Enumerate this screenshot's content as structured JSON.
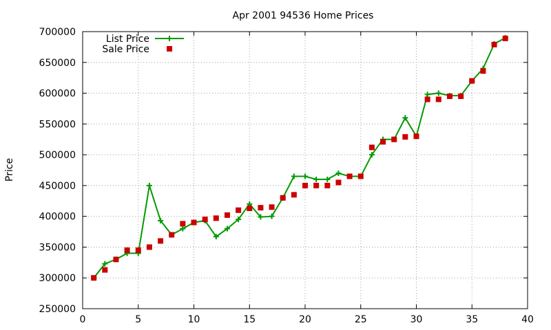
{
  "chart_data": {
    "type": "line",
    "title": "Apr 2001 94536 Home Prices",
    "xlabel": "",
    "ylabel": "Price",
    "xlim": [
      0,
      40
    ],
    "ylim": [
      250000,
      700000
    ],
    "x_ticks": [
      0,
      5,
      10,
      15,
      20,
      25,
      30,
      35,
      40
    ],
    "y_ticks": [
      250000,
      300000,
      350000,
      400000,
      450000,
      500000,
      550000,
      600000,
      650000,
      700000
    ],
    "grid": true,
    "legend_position": "top-left",
    "series": [
      {
        "name": "List Price",
        "style": "line-points",
        "color": "#009900",
        "x": [
          1,
          2,
          3,
          4,
          5,
          6,
          7,
          8,
          9,
          10,
          11,
          12,
          13,
          14,
          15,
          16,
          17,
          18,
          19,
          20,
          21,
          22,
          23,
          24,
          25,
          26,
          27,
          28,
          29,
          30,
          31,
          32,
          33,
          34,
          35,
          36,
          37,
          38
        ],
        "values": [
          300000,
          323000,
          330000,
          340000,
          340000,
          450000,
          393000,
          370000,
          380000,
          390000,
          393000,
          367000,
          380000,
          395000,
          420000,
          399000,
          400000,
          430000,
          465000,
          465000,
          460000,
          460000,
          470000,
          465000,
          465000,
          500000,
          525000,
          525000,
          560000,
          530000,
          598000,
          600000,
          596000,
          596000,
          620000,
          640000,
          680000,
          690000
        ]
      },
      {
        "name": "Sale Price",
        "style": "points",
        "color": "#cc0000",
        "x": [
          1,
          2,
          3,
          4,
          5,
          6,
          7,
          8,
          9,
          10,
          11,
          12,
          13,
          14,
          15,
          16,
          17,
          18,
          19,
          20,
          21,
          22,
          23,
          24,
          25,
          26,
          27,
          28,
          29,
          30,
          31,
          32,
          33,
          34,
          35,
          36,
          37,
          38
        ],
        "values": [
          300000,
          313000,
          330000,
          345000,
          345000,
          350000,
          360000,
          370000,
          388000,
          390000,
          395000,
          397000,
          402000,
          410000,
          413000,
          414000,
          415000,
          430000,
          435000,
          450000,
          450000,
          450000,
          455000,
          465000,
          465000,
          512000,
          521000,
          525000,
          529000,
          530000,
          590000,
          590000,
          595000,
          595000,
          620000,
          636000,
          679000,
          689000
        ]
      }
    ]
  }
}
